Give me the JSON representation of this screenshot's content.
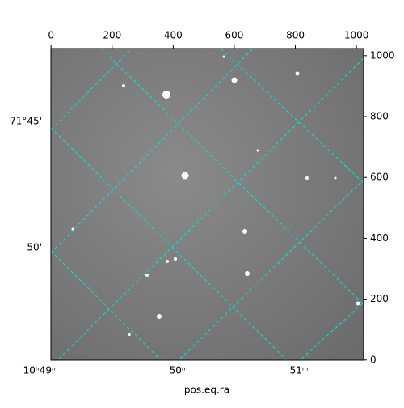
{
  "chart_data": {
    "type": "image",
    "x_label": "pos.eq.ra",
    "xlim": [
      -0.5,
      1023.5
    ],
    "ylim": [
      -0.5,
      1023.5
    ],
    "xticks": [
      0,
      200,
      400,
      600,
      800,
      1000
    ],
    "yticks": [
      0,
      200,
      400,
      600,
      800,
      1000
    ],
    "ra_tick_labels": [
      "10ʰ49ᵐ",
      "50ᵐ",
      "51ᵐ"
    ],
    "dec_tick_labels": [
      "71°45'",
      "50'"
    ],
    "grid_color": "#00e5e5"
  }
}
